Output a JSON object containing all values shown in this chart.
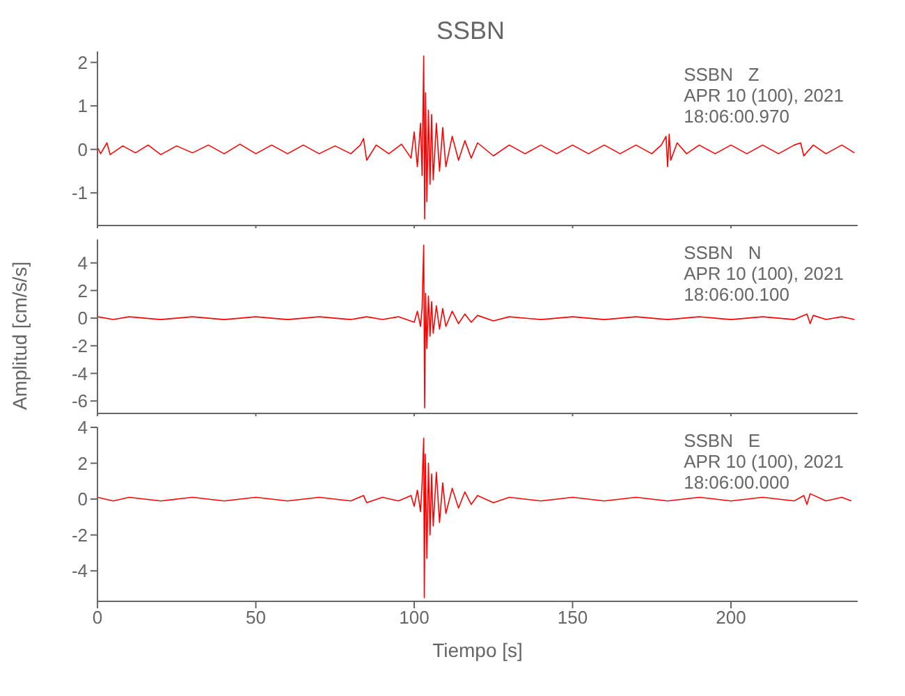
{
  "chart_data": [
    {
      "type": "line",
      "title": "SSBN",
      "annotations": [
        "SSBN   Z",
        "APR 10 (100), 2021",
        "18:06:00.970"
      ],
      "xlim": [
        0,
        240
      ],
      "xticks": [
        0,
        50,
        100,
        150,
        200
      ],
      "ylim": [
        -1.75,
        2.25
      ],
      "yticks": [
        -1,
        0,
        1,
        2
      ],
      "tick_labels": "y",
      "marker": "none",
      "line_style": "solid",
      "series": [
        {
          "color": "#ff0000",
          "x": [
            0,
            1,
            3,
            4,
            8,
            12,
            16,
            20,
            25,
            30,
            35,
            40,
            45,
            50,
            55,
            60,
            65,
            70,
            75,
            80,
            83,
            84,
            85,
            88,
            92,
            96,
            99,
            100,
            101,
            102,
            102.5,
            103,
            103.3,
            103.6,
            104,
            104.5,
            105,
            105.5,
            106,
            107,
            108,
            109,
            110,
            112,
            114,
            116,
            118,
            120,
            125,
            130,
            135,
            140,
            145,
            150,
            155,
            160,
            165,
            170,
            175,
            178,
            179.5,
            180,
            180.5,
            181,
            183,
            186,
            190,
            195,
            200,
            205,
            210,
            215,
            220,
            222,
            223,
            226,
            230,
            235,
            239
          ],
          "values": [
            0.05,
            -0.1,
            0.15,
            -0.12,
            0.08,
            -0.08,
            0.1,
            -0.12,
            0.08,
            -0.08,
            0.1,
            -0.1,
            0.12,
            -0.1,
            0.1,
            -0.1,
            0.1,
            -0.1,
            0.08,
            -0.1,
            0.1,
            0.25,
            -0.25,
            0.1,
            -0.1,
            0.12,
            -0.2,
            0.4,
            -0.4,
            0.6,
            -0.6,
            2.15,
            -1.6,
            1.3,
            -1.2,
            0.9,
            -0.8,
            0.8,
            -0.7,
            0.6,
            -0.5,
            0.5,
            -0.4,
            0.3,
            -0.25,
            0.2,
            -0.2,
            0.15,
            -0.15,
            0.1,
            -0.1,
            0.1,
            -0.1,
            0.1,
            -0.1,
            0.1,
            -0.1,
            0.1,
            -0.1,
            0.1,
            0.3,
            -0.4,
            0.35,
            -0.25,
            0.15,
            -0.1,
            0.1,
            -0.1,
            0.1,
            -0.1,
            0.1,
            -0.1,
            0.1,
            0.15,
            -0.15,
            0.1,
            -0.1,
            0.1,
            -0.08
          ]
        }
      ]
    },
    {
      "type": "line",
      "ylabel": "Amplitud [cm/s/s]",
      "annotations": [
        "SSBN   N",
        "APR 10 (100), 2021",
        "18:06:00.100"
      ],
      "xlim": [
        0,
        240
      ],
      "xticks": [
        0,
        50,
        100,
        150,
        200
      ],
      "ylim": [
        -6.9,
        5.7
      ],
      "yticks": [
        -6,
        -4,
        -2,
        0,
        2,
        4
      ],
      "tick_labels": "y",
      "marker": "none",
      "line_style": "solid",
      "series": [
        {
          "color": "#ff0000",
          "x": [
            0,
            5,
            10,
            20,
            30,
            40,
            50,
            60,
            70,
            80,
            85,
            90,
            95,
            100,
            101,
            102,
            102.5,
            103,
            103.3,
            103.6,
            104,
            104.5,
            105,
            105.5,
            106,
            107,
            108,
            109,
            110,
            112,
            114,
            116,
            118,
            120,
            125,
            130,
            140,
            150,
            160,
            170,
            180,
            190,
            200,
            210,
            220,
            224,
            225,
            226,
            230,
            235,
            239
          ],
          "values": [
            0.1,
            -0.1,
            0.1,
            -0.1,
            0.1,
            -0.1,
            0.1,
            -0.1,
            0.1,
            -0.1,
            0.1,
            -0.1,
            0.1,
            -0.3,
            0.5,
            -0.6,
            0.8,
            5.3,
            -6.5,
            1.8,
            -2.2,
            1.6,
            -1.3,
            1.2,
            -1.1,
            0.9,
            -0.8,
            0.7,
            -0.6,
            0.5,
            -0.4,
            0.3,
            -0.3,
            0.2,
            -0.2,
            0.1,
            -0.1,
            0.1,
            -0.1,
            0.1,
            -0.1,
            0.1,
            -0.1,
            0.1,
            -0.1,
            0.3,
            -0.4,
            0.2,
            -0.1,
            0.1,
            -0.1
          ]
        }
      ]
    },
    {
      "type": "line",
      "xlabel": "Tiempo [s]",
      "annotations": [
        "SSBN   E",
        "APR 10 (100), 2021",
        "18:06:00.000"
      ],
      "xlim": [
        0,
        240
      ],
      "xticks": [
        0,
        50,
        100,
        150,
        200
      ],
      "ylim": [
        -5.7,
        4
      ],
      "yticks": [
        -4,
        -2,
        0,
        2,
        4
      ],
      "marker": "none",
      "line_style": "solid",
      "series": [
        {
          "color": "#ff0000",
          "x": [
            0,
            5,
            10,
            20,
            30,
            40,
            50,
            60,
            70,
            80,
            84,
            85,
            90,
            95,
            99,
            100,
            101,
            102,
            102.5,
            103,
            103.2,
            103.5,
            104,
            104.5,
            105,
            105.5,
            106,
            107,
            108,
            109,
            110,
            112,
            114,
            116,
            118,
            120,
            125,
            130,
            140,
            150,
            160,
            170,
            180,
            190,
            200,
            210,
            220,
            223,
            224,
            225,
            230,
            235,
            238
          ],
          "values": [
            0.1,
            -0.1,
            0.1,
            -0.1,
            0.1,
            -0.1,
            0.1,
            -0.1,
            0.1,
            -0.1,
            0.2,
            -0.2,
            0.1,
            -0.1,
            0.2,
            -0.4,
            0.5,
            -0.7,
            0.9,
            3.4,
            -5.5,
            2.5,
            -3.3,
            2.0,
            -2.0,
            1.4,
            -1.5,
            1.5,
            -1.3,
            0.9,
            -0.8,
            0.6,
            -0.5,
            0.4,
            -0.3,
            0.2,
            -0.2,
            0.1,
            -0.1,
            0.1,
            -0.1,
            0.1,
            -0.1,
            0.1,
            -0.1,
            0.1,
            -0.1,
            0.2,
            -0.3,
            0.3,
            -0.1,
            0.1,
            -0.1
          ]
        }
      ]
    }
  ]
}
